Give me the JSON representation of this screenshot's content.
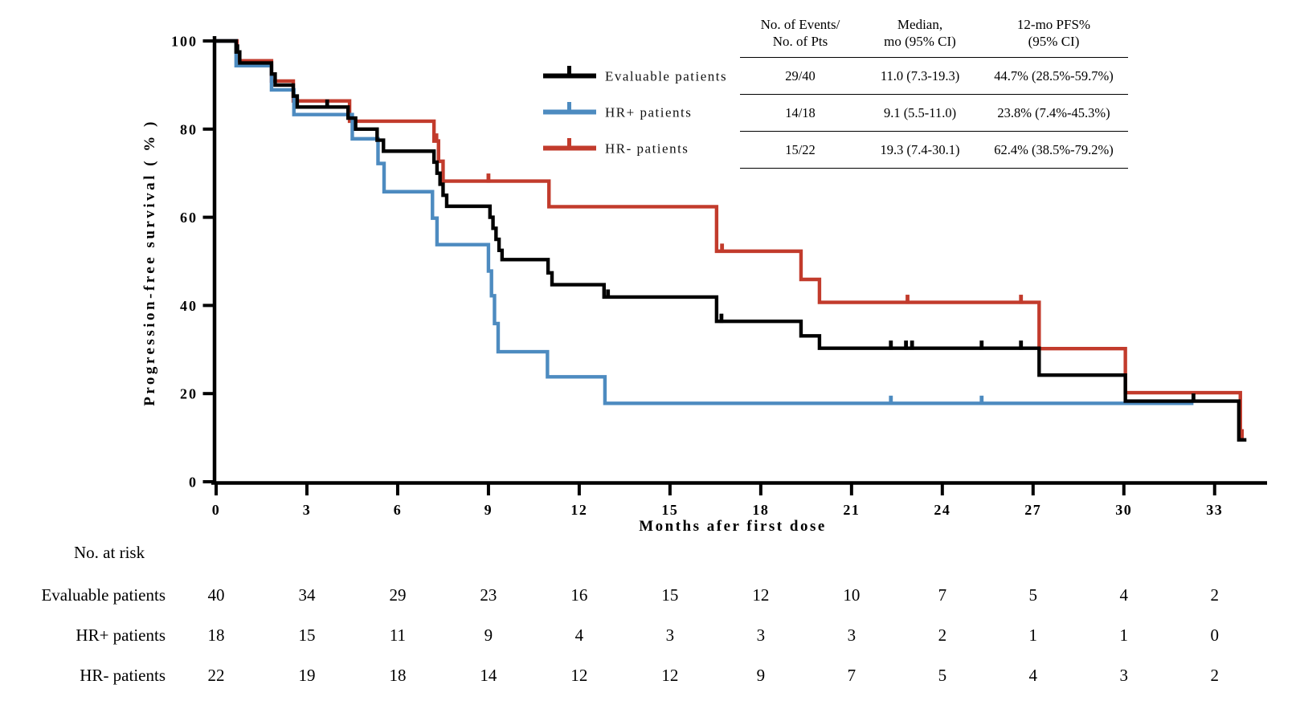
{
  "chart_data": {
    "type": "line",
    "subtype": "kaplan-meier-step",
    "title": "",
    "xlabel": "Months afer first dose",
    "ylabel": "Progression-free survival ( % )",
    "xlim": [
      0,
      34.7
    ],
    "ylim": [
      0,
      100
    ],
    "x_ticks": [
      0,
      3,
      6,
      9,
      12,
      15,
      18,
      21,
      24,
      27,
      30,
      33
    ],
    "y_ticks": [
      0,
      20,
      40,
      60,
      80,
      100
    ],
    "grid": false,
    "legend_position": "inside-top-left-of-stats-table",
    "series": [
      {
        "name": "Evaluable patients",
        "color": "#000000",
        "steps": [
          [
            0,
            100
          ],
          [
            0.66,
            97.5
          ],
          [
            0.78,
            95
          ],
          [
            1.83,
            92.5
          ],
          [
            1.95,
            90
          ],
          [
            2.55,
            87.5
          ],
          [
            2.68,
            85
          ],
          [
            4.36,
            82.5
          ],
          [
            4.61,
            80
          ],
          [
            5.32,
            77.5
          ],
          [
            5.53,
            75
          ],
          [
            7.2,
            72.5
          ],
          [
            7.3,
            70
          ],
          [
            7.4,
            67.5
          ],
          [
            7.5,
            65
          ],
          [
            7.62,
            62.5
          ],
          [
            9.05,
            60
          ],
          [
            9.15,
            57.5
          ],
          [
            9.25,
            55
          ],
          [
            9.35,
            52.5
          ],
          [
            9.45,
            50.4
          ],
          [
            10.97,
            47.4
          ],
          [
            11.1,
            44.7
          ],
          [
            12.82,
            41.9
          ],
          [
            16.54,
            36.4
          ],
          [
            19.33,
            33.1
          ],
          [
            19.94,
            30.3
          ],
          [
            27.2,
            24.2
          ],
          [
            30.05,
            18.3
          ],
          [
            33.8,
            9.5
          ]
        ],
        "end": 34.05,
        "censors": [
          [
            0.7,
            97.5
          ],
          [
            3.67,
            85
          ],
          [
            12.95,
            41.9
          ],
          [
            16.7,
            36.4
          ],
          [
            22.3,
            30.3
          ],
          [
            22.8,
            30.3
          ],
          [
            23.0,
            30.3
          ],
          [
            25.3,
            30.3
          ],
          [
            26.6,
            30.3
          ],
          [
            32.3,
            18.3
          ]
        ]
      },
      {
        "name": "HR+ patients",
        "color": "#4d8bc0",
        "steps": [
          [
            0,
            100
          ],
          [
            0.66,
            94.4
          ],
          [
            1.83,
            88.9
          ],
          [
            2.57,
            83.3
          ],
          [
            4.5,
            77.8
          ],
          [
            5.35,
            72.2
          ],
          [
            5.55,
            65.8
          ],
          [
            7.15,
            59.8
          ],
          [
            7.3,
            53.8
          ],
          [
            9.0,
            47.8
          ],
          [
            9.1,
            42.2
          ],
          [
            9.2,
            35.9
          ],
          [
            9.32,
            29.5
          ],
          [
            10.95,
            23.8
          ],
          [
            12.85,
            17.8
          ]
        ],
        "end": 32.3,
        "censors": [
          [
            22.3,
            17.8
          ],
          [
            25.3,
            17.8
          ]
        ]
      },
      {
        "name": "HR- patients",
        "color": "#c23b2c",
        "steps": [
          [
            0,
            100
          ],
          [
            0.69,
            95.5
          ],
          [
            1.83,
            90.9
          ],
          [
            2.55,
            86.4
          ],
          [
            4.41,
            81.8
          ],
          [
            7.2,
            77.3
          ],
          [
            7.35,
            72.7
          ],
          [
            7.5,
            68.2
          ],
          [
            11.0,
            62.4
          ],
          [
            16.54,
            52.3
          ],
          [
            19.33,
            45.9
          ],
          [
            19.94,
            40.7
          ],
          [
            27.2,
            30.2
          ],
          [
            30.05,
            20.2
          ],
          [
            33.85,
            10.2
          ]
        ],
        "end": 33.95,
        "censors": [
          [
            0.74,
            95.5
          ],
          [
            7.28,
            77.3
          ],
          [
            9.0,
            68.2
          ],
          [
            16.72,
            52.3
          ],
          [
            22.85,
            40.7
          ],
          [
            26.6,
            40.7
          ],
          [
            33.9,
            10.2
          ]
        ]
      }
    ]
  },
  "stats_table": {
    "columns": [
      {
        "line1": "No. of Events/",
        "line2": "No. of Pts"
      },
      {
        "line1": "Median,",
        "line2": "mo (95% CI)"
      },
      {
        "line1": "12-mo PFS%",
        "line2": "(95% CI)"
      }
    ],
    "rows": [
      {
        "events": "29/40",
        "median": "11.0 (7.3-19.3)",
        "pfs": "44.7% (28.5%-59.7%)"
      },
      {
        "events": "14/18",
        "median": "9.1 (5.5-11.0)",
        "pfs": "23.8% (7.4%-45.3%)"
      },
      {
        "events": "15/22",
        "median": "19.3 (7.4-30.1)",
        "pfs": "62.4% (38.5%-79.2%)"
      }
    ]
  },
  "at_risk": {
    "title": "No. at risk",
    "months": [
      0,
      3,
      6,
      9,
      12,
      15,
      18,
      21,
      24,
      27,
      30,
      33
    ],
    "rows": [
      {
        "label": "Evaluable patients",
        "values": [
          40,
          34,
          29,
          23,
          16,
          15,
          12,
          10,
          7,
          5,
          4,
          2
        ]
      },
      {
        "label": "HR+ patients",
        "values": [
          18,
          15,
          11,
          9,
          4,
          3,
          3,
          3,
          2,
          1,
          1,
          0
        ]
      },
      {
        "label": "HR- patients",
        "values": [
          22,
          19,
          18,
          14,
          12,
          12,
          9,
          7,
          5,
          4,
          3,
          2
        ]
      }
    ]
  }
}
